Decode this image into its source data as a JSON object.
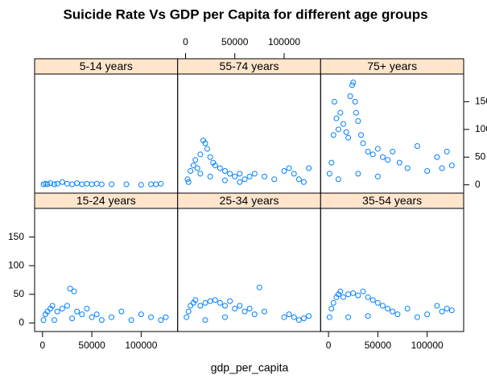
{
  "chart_data": {
    "type": "scatter",
    "title": "Suicide Rate Vs GDP per Capita for different age groups",
    "x_label": "gdp_per_capita",
    "color": "#0080ff",
    "xlim": [
      -8000,
      137000
    ],
    "ylim": [
      -15,
      200
    ],
    "xticks": [
      0,
      50000,
      100000
    ],
    "yticks": [
      0,
      50,
      100,
      150
    ],
    "panels": [
      {
        "name": "5-14 years",
        "x": [
          1000,
          3000,
          5000,
          8000,
          12000,
          15000,
          20000,
          25000,
          30000,
          35000,
          40000,
          45000,
          50000,
          55000,
          60000,
          70000,
          85000,
          100000,
          110000,
          115000,
          120000
        ],
        "y": [
          1,
          2,
          1,
          3,
          1,
          2,
          5,
          2,
          1,
          3,
          1,
          2,
          1,
          2,
          1,
          1,
          1,
          0,
          1,
          1,
          2
        ]
      },
      {
        "name": "55-74 years",
        "x": [
          2000,
          5000,
          8000,
          10000,
          12000,
          15000,
          18000,
          20000,
          22000,
          25000,
          28000,
          30000,
          35000,
          40000,
          45000,
          50000,
          55000,
          60000,
          65000,
          70000,
          80000,
          90000,
          100000,
          105000,
          110000,
          115000,
          120000,
          125000,
          3000,
          15000,
          25000,
          40000,
          55000
        ],
        "y": [
          10,
          25,
          35,
          45,
          30,
          55,
          80,
          75,
          65,
          50,
          40,
          35,
          30,
          25,
          20,
          15,
          20,
          10,
          15,
          20,
          15,
          10,
          25,
          30,
          20,
          10,
          5,
          30,
          5,
          20,
          15,
          8,
          5
        ]
      },
      {
        "name": "75+ years",
        "x": [
          1000,
          3000,
          5000,
          6000,
          8000,
          10000,
          12000,
          15000,
          18000,
          20000,
          22000,
          24000,
          25000,
          27000,
          28000,
          30000,
          33000,
          35000,
          40000,
          45000,
          50000,
          55000,
          60000,
          65000,
          72000,
          80000,
          90000,
          100000,
          110000,
          115000,
          120000,
          125000,
          10000,
          30000,
          50000
        ],
        "y": [
          20,
          40,
          90,
          150,
          120,
          100,
          130,
          110,
          95,
          85,
          160,
          180,
          185,
          150,
          130,
          115,
          90,
          75,
          60,
          55,
          65,
          50,
          45,
          60,
          40,
          30,
          70,
          25,
          50,
          30,
          60,
          35,
          10,
          20,
          15
        ]
      },
      {
        "name": "15-24 years",
        "x": [
          1000,
          3000,
          5000,
          8000,
          10000,
          15000,
          20000,
          25000,
          28000,
          32000,
          35000,
          40000,
          45000,
          50000,
          55000,
          60000,
          70000,
          80000,
          90000,
          100000,
          110000,
          120000,
          125000,
          12000,
          30000
        ],
        "y": [
          5,
          15,
          20,
          25,
          30,
          20,
          25,
          30,
          60,
          55,
          20,
          15,
          25,
          10,
          15,
          5,
          10,
          20,
          5,
          15,
          10,
          5,
          10,
          5,
          8
        ]
      },
      {
        "name": "25-34 years",
        "x": [
          1000,
          3000,
          5000,
          8000,
          10000,
          15000,
          20000,
          25000,
          30000,
          35000,
          40000,
          45000,
          50000,
          55000,
          60000,
          65000,
          70000,
          80000,
          100000,
          105000,
          110000,
          115000,
          120000,
          125000,
          75000,
          20000,
          40000
        ],
        "y": [
          10,
          20,
          30,
          35,
          40,
          30,
          35,
          38,
          40,
          35,
          30,
          38,
          25,
          30,
          20,
          25,
          15,
          20,
          10,
          15,
          10,
          5,
          8,
          12,
          62,
          5,
          10
        ]
      },
      {
        "name": "35-54 years",
        "x": [
          1000,
          3000,
          5000,
          8000,
          10000,
          12000,
          15000,
          20000,
          25000,
          30000,
          35000,
          40000,
          45000,
          50000,
          55000,
          60000,
          65000,
          70000,
          80000,
          90000,
          100000,
          110000,
          115000,
          120000,
          125000,
          20000,
          40000
        ],
        "y": [
          10,
          25,
          35,
          45,
          50,
          55,
          45,
          50,
          52,
          48,
          55,
          45,
          40,
          35,
          30,
          25,
          20,
          15,
          25,
          10,
          15,
          30,
          20,
          25,
          22,
          10,
          12
        ]
      }
    ]
  }
}
